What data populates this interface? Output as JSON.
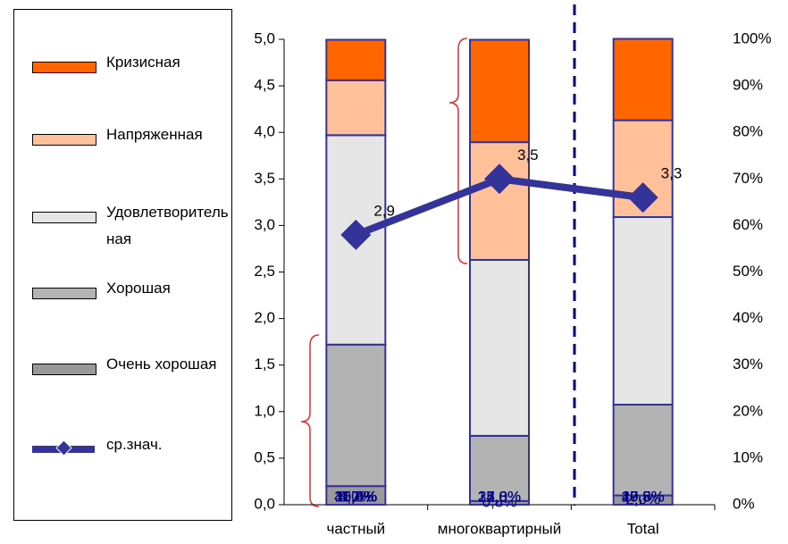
{
  "chart_data": {
    "type": "stacked_bar_line",
    "categories": [
      "частный",
      "многоквартирный",
      "Total"
    ],
    "series": [
      {
        "name": "Очень хорошая",
        "color": "#999999",
        "axis": "y2",
        "values": [
          4.0,
          0.8,
          2.0
        ],
        "value_labels": [
          "4,0%",
          "0,8%",
          "2,0%"
        ]
      },
      {
        "name": "Хорошая",
        "color": "#b3b3b3",
        "axis": "y2",
        "values": [
          30.4,
          14.0,
          19.5
        ],
        "value_labels": [
          "30,4%",
          "14,0%",
          "19,5%"
        ]
      },
      {
        "name": "Удовлетворительная",
        "color": "#e6e6e6",
        "axis": "y2",
        "values": [
          45.0,
          37.8,
          40.3
        ],
        "value_labels": [
          "45,0%",
          "37,8%",
          "40,3%"
        ]
      },
      {
        "name": "Напряженная",
        "color": "#ffc09a",
        "axis": "y2",
        "values": [
          11.8,
          25.3,
          20.8
        ],
        "value_labels": [
          "11,8%",
          "25,3%",
          "20,8%"
        ]
      },
      {
        "name": "Кризисная",
        "color": "#ff6600",
        "axis": "y2",
        "values": [
          8.7,
          22.0,
          17.5
        ],
        "value_labels": [
          "8,7%",
          "22,0%",
          "17,5%"
        ]
      },
      {
        "name": "ср.знач.",
        "color": "#333399",
        "type": "line",
        "values": [
          2.9,
          3.5,
          3.3
        ],
        "value_labels": [
          "2,9",
          "3,5",
          "3,3"
        ]
      }
    ],
    "ylim": [
      0,
      5
    ],
    "yticks": [
      {
        "value": 0,
        "label": "0,0"
      },
      {
        "value": 0.5,
        "label": "0,5"
      },
      {
        "value": 1,
        "label": "1,0"
      },
      {
        "value": 1.5,
        "label": "1,5"
      },
      {
        "value": 2,
        "label": "2,0"
      },
      {
        "value": 2.5,
        "label": "2,5"
      },
      {
        "value": 3,
        "label": "3,0"
      },
      {
        "value": 3.5,
        "label": "3,5"
      },
      {
        "value": 4,
        "label": "4,0"
      },
      {
        "value": 4.5,
        "label": "4,5"
      },
      {
        "value": 5,
        "label": "5,0"
      }
    ],
    "y2lim": [
      0,
      100
    ],
    "y2ticks": [
      {
        "value": 0,
        "label": "0%"
      },
      {
        "value": 10,
        "label": "10%"
      },
      {
        "value": 20,
        "label": "20%"
      },
      {
        "value": 30,
        "label": "30%"
      },
      {
        "value": 40,
        "label": "40%"
      },
      {
        "value": 50,
        "label": "50%"
      },
      {
        "value": 60,
        "label": "60%"
      },
      {
        "value": 70,
        "label": "70%"
      },
      {
        "value": 80,
        "label": "80%"
      },
      {
        "value": 90,
        "label": "90%"
      },
      {
        "value": 100,
        "label": "100%"
      }
    ],
    "legend": "left"
  }
}
